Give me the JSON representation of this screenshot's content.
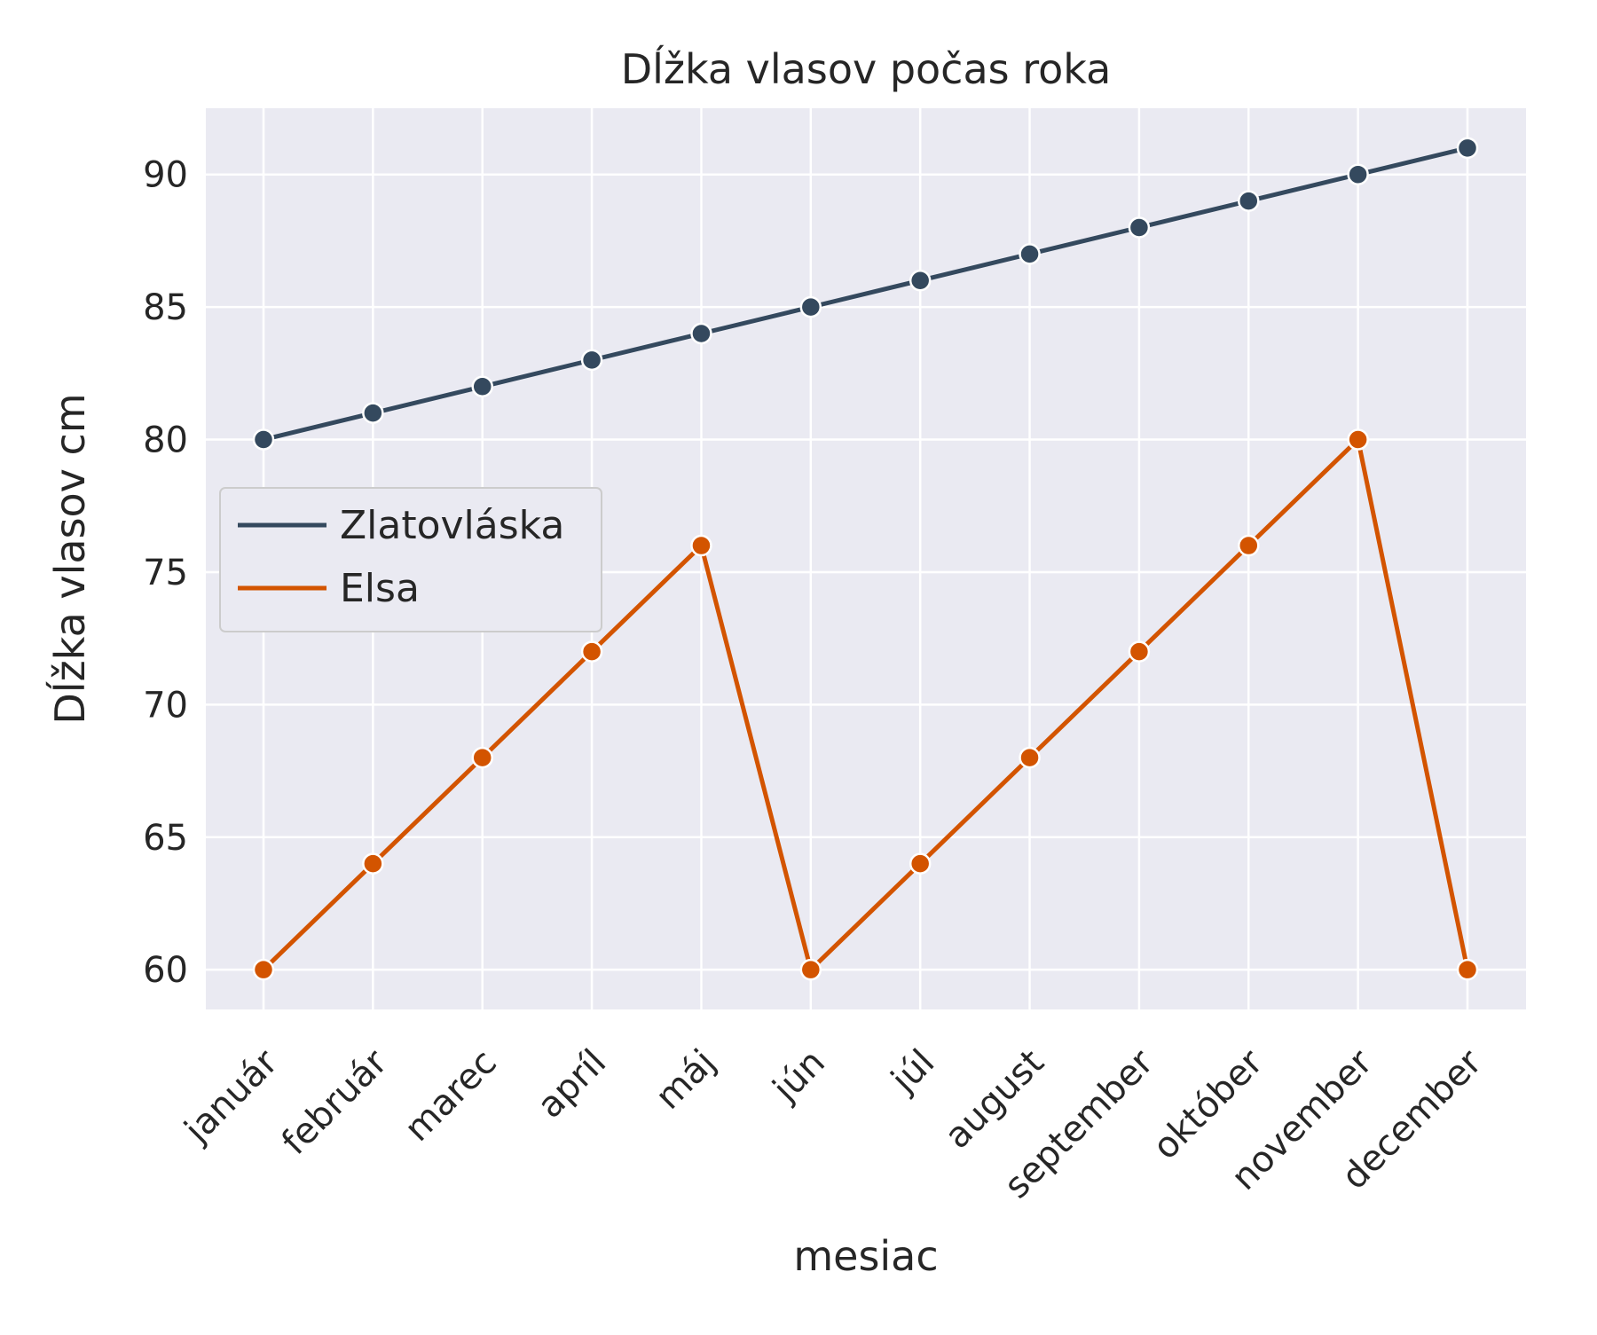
{
  "chart_data": {
    "type": "line",
    "title": "Dĺžka vlasov počas roka",
    "xlabel": "mesiac",
    "ylabel": "Dĺžka vlasov cm",
    "categories": [
      "január",
      "február",
      "marec",
      "apríl",
      "máj",
      "jún",
      "júl",
      "august",
      "september",
      "október",
      "november",
      "december"
    ],
    "ylim": [
      58.5,
      92.5
    ],
    "yticks": [
      60,
      65,
      70,
      75,
      80,
      85,
      90
    ],
    "grid": true,
    "legend_position": "center-left",
    "background": "#eaeaf2",
    "series": [
      {
        "name": "Zlatovláska",
        "color": "#34495e",
        "values": [
          80,
          81,
          82,
          83,
          84,
          85,
          86,
          87,
          88,
          89,
          90,
          91
        ]
      },
      {
        "name": "Elsa",
        "color": "#d35400",
        "values": [
          60,
          64,
          68,
          72,
          76,
          60,
          64,
          68,
          72,
          76,
          80,
          60
        ]
      }
    ]
  }
}
